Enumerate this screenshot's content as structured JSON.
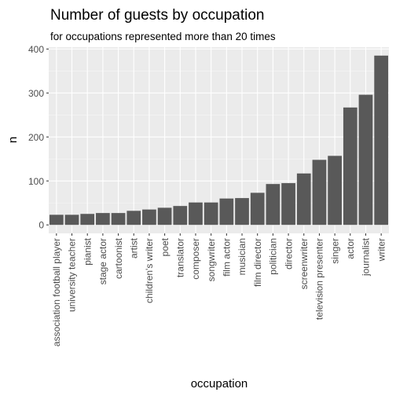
{
  "chart_data": {
    "type": "bar",
    "title": "Number of guests by occupation",
    "subtitle": "for occupations represented more than 20 times",
    "xlabel": "occupation",
    "ylabel": "n",
    "categories": [
      "association football player",
      "university teacher",
      "pianist",
      "stage actor",
      "cartoonist",
      "artist",
      "children's writer",
      "poet",
      "translator",
      "composer",
      "songwriter",
      "film actor",
      "musician",
      "film director",
      "politician",
      "director",
      "screenwriter",
      "television presenter",
      "singer",
      "actor",
      "journalist",
      "writer"
    ],
    "values": [
      23,
      23,
      25,
      27,
      27,
      32,
      35,
      39,
      43,
      51,
      51,
      60,
      61,
      73,
      93,
      95,
      117,
      148,
      157,
      267,
      296,
      385
    ],
    "ylim": [
      -19.25,
      404.25
    ],
    "yticks": [
      0,
      100,
      200,
      300,
      400
    ],
    "grid": true,
    "legend": "none",
    "colors": {
      "bar": "#595959",
      "panel": "#ebebeb",
      "grid_major": "#ffffff",
      "grid_minor": "#f5f5f5",
      "tick_text": "#4d4d4d"
    }
  }
}
